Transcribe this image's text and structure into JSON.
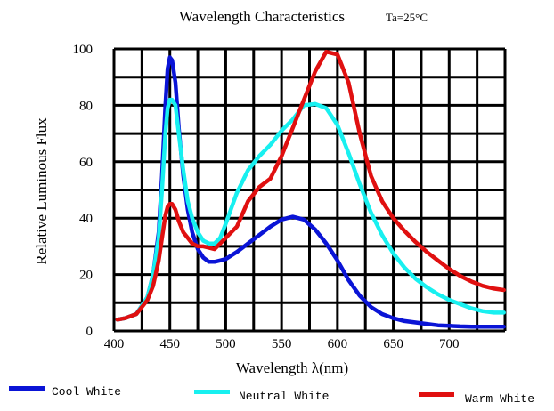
{
  "chart_data": {
    "type": "line",
    "title": "Wavelength Characteristics",
    "subtitle": "Ta=25°C",
    "xlabel": "Wavelength λ(nm)",
    "ylabel": "Relative Luminous Flux",
    "xlim": [
      400,
      750
    ],
    "ylim": [
      0,
      100
    ],
    "x_ticks": [
      400,
      450,
      500,
      550,
      600,
      650,
      700
    ],
    "y_ticks": [
      0,
      20,
      40,
      60,
      80,
      100
    ],
    "grid": true,
    "legend_position": "bottom",
    "series": [
      {
        "name": "Cool White",
        "color": "#0a14d6",
        "x": [
          403,
          410,
          420,
          430,
          435,
          440,
          443,
          446,
          448,
          450,
          452,
          455,
          458,
          462,
          466,
          470,
          475,
          480,
          485,
          490,
          495,
          500,
          510,
          520,
          530,
          540,
          550,
          560,
          570,
          580,
          590,
          600,
          610,
          620,
          630,
          640,
          650,
          660,
          670,
          680,
          690,
          700,
          710,
          720,
          730,
          740,
          749
        ],
        "y": [
          4,
          4.5,
          6,
          12,
          20,
          35,
          55,
          80,
          93,
          97,
          96,
          88,
          72,
          55,
          43,
          35,
          29,
          26,
          24.5,
          24.5,
          25,
          25.5,
          28,
          31,
          34,
          37,
          39.5,
          40.5,
          39.5,
          36,
          31,
          25,
          18,
          12.5,
          8.5,
          6,
          4.5,
          3.5,
          3,
          2.5,
          2,
          1.8,
          1.6,
          1.5,
          1.5,
          1.5,
          1.5
        ]
      },
      {
        "name": "Neutral White",
        "color": "#18f0f0",
        "x": [
          403,
          410,
          420,
          430,
          435,
          440,
          443,
          446,
          448,
          450,
          452,
          455,
          458,
          462,
          466,
          470,
          475,
          480,
          485,
          490,
          495,
          500,
          510,
          520,
          530,
          540,
          550,
          560,
          570,
          580,
          590,
          600,
          610,
          620,
          630,
          640,
          650,
          660,
          670,
          680,
          690,
          700,
          710,
          720,
          730,
          740,
          749
        ],
        "y": [
          4,
          4.5,
          6,
          12,
          20,
          33,
          50,
          70,
          79,
          82,
          82,
          80,
          70,
          57,
          46,
          40,
          35,
          32,
          31,
          31,
          33,
          38,
          49,
          57,
          62,
          66,
          71,
          75,
          80,
          80.5,
          79,
          73,
          63,
          52,
          42,
          34,
          27.5,
          22.5,
          18.5,
          15.5,
          13,
          11,
          9.5,
          8,
          7,
          6.5,
          6.5
        ]
      },
      {
        "name": "Warm White",
        "color": "#e01010",
        "x": [
          403,
          410,
          420,
          430,
          435,
          440,
          443,
          446,
          448,
          450,
          452,
          455,
          458,
          462,
          466,
          470,
          475,
          480,
          485,
          490,
          495,
          500,
          510,
          520,
          530,
          540,
          550,
          560,
          570,
          580,
          590,
          600,
          610,
          620,
          630,
          640,
          650,
          660,
          670,
          680,
          690,
          700,
          710,
          720,
          730,
          740,
          749
        ],
        "y": [
          4,
          4.5,
          6,
          11,
          16,
          25,
          33,
          41,
          44,
          45,
          45,
          43,
          39,
          35,
          33,
          31,
          30,
          30,
          29.5,
          29,
          31,
          33,
          37,
          46,
          51,
          54,
          62,
          72,
          82,
          92,
          99,
          98,
          88,
          70,
          55,
          46,
          40,
          35.5,
          31.5,
          28,
          25,
          22,
          19.5,
          17.5,
          16,
          15,
          14.5
        ]
      }
    ]
  }
}
